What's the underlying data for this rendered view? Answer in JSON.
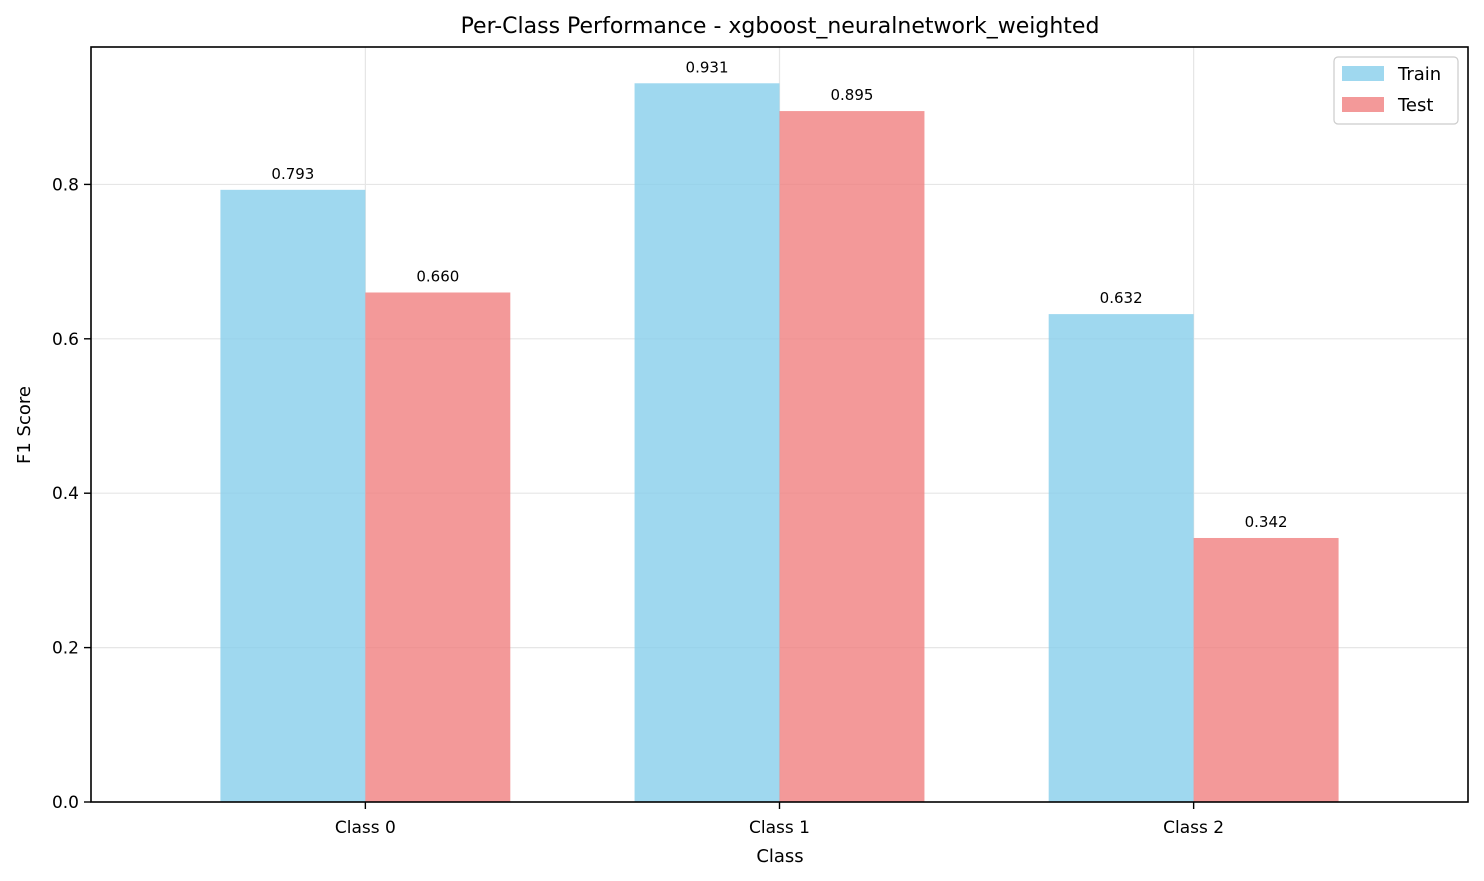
{
  "chart_data": {
    "type": "bar",
    "title": "Per-Class Performance - xgboost_neuralnetwork_weighted",
    "xlabel": "Class",
    "ylabel": "F1 Score",
    "categories": [
      "Class 0",
      "Class 1",
      "Class 2"
    ],
    "series": [
      {
        "name": "Train",
        "values": [
          0.793,
          0.931,
          0.632
        ],
        "labels": [
          "0.793",
          "0.931",
          "0.632"
        ],
        "color": "#87CEEB"
      },
      {
        "name": "Test",
        "values": [
          0.66,
          0.895,
          0.342
        ],
        "labels": [
          "0.660",
          "0.895",
          "0.342"
        ],
        "color": "#F08080"
      }
    ],
    "ylim": [
      0,
      0.978
    ],
    "yticks": [
      0.0,
      0.2,
      0.4,
      0.6,
      0.8
    ],
    "ytick_labels": [
      "0.0",
      "0.2",
      "0.4",
      "0.6",
      "0.8"
    ],
    "grid": true,
    "legend_position": "top-right"
  }
}
